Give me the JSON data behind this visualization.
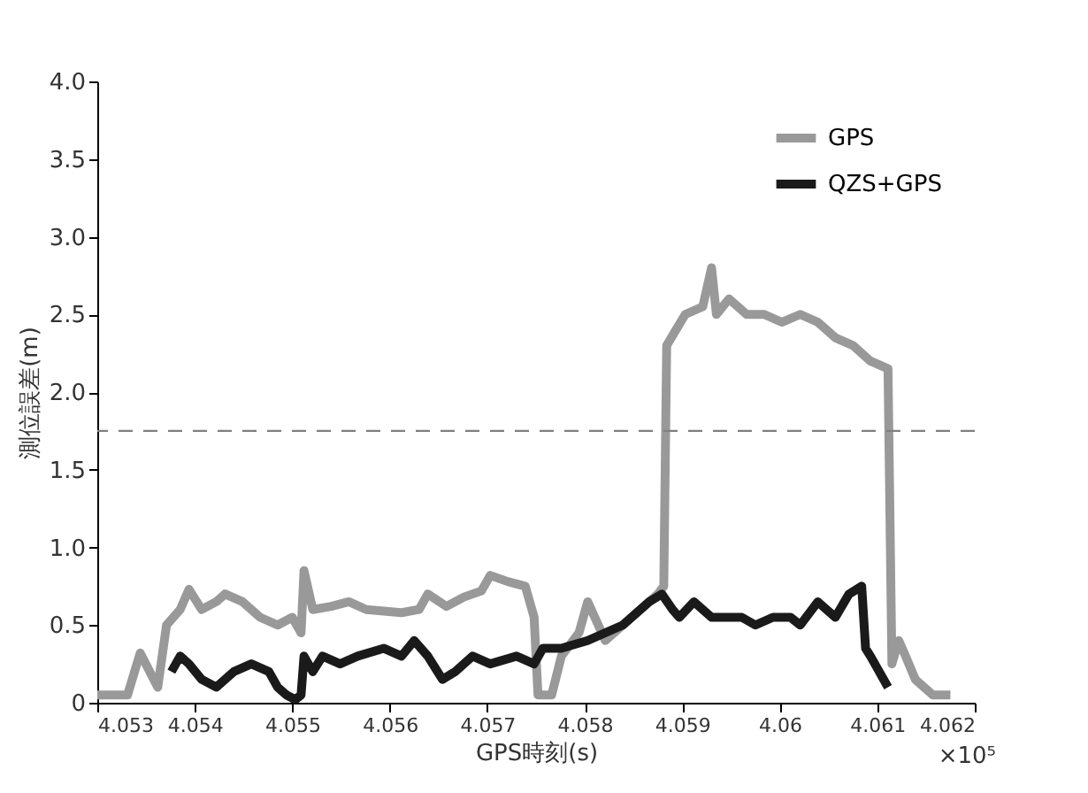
{
  "chart_data": {
    "type": "line",
    "xlabel": "GPS時刻(s)",
    "ylabel": "測位誤差(m)",
    "annotations": [
      "×10⁵"
    ],
    "xlim": [
      4.053,
      4.062
    ],
    "xticks": [
      4.053,
      4.054,
      4.055,
      4.056,
      4.057,
      4.058,
      4.059,
      4.06,
      4.061,
      4.062
    ],
    "ylim": [
      0,
      4.0
    ],
    "yticks": [
      0,
      0.5,
      {
        "value": 1,
        "label": "1.0"
      },
      1.5,
      {
        "value": 2,
        "label": "2.0"
      },
      2.5,
      {
        "value": 3,
        "label": "3.0"
      },
      3.5,
      {
        "value": 4,
        "label": "4.0"
      }
    ],
    "grid": false,
    "legend": "top right",
    "line_style": "solid",
    "marker": "none",
    "ref_lines": [
      {
        "axis": "y",
        "value": 1.75,
        "label": null,
        "color": "#808080",
        "line_style": "dashed"
      }
    ],
    "series": [
      {
        "name": "GPS",
        "color": "#999999",
        "x": [
          4.053,
          4.05331,
          4.05344,
          4.05362,
          4.05371,
          4.05385,
          4.05394,
          4.05407,
          4.05422,
          4.05431,
          4.05449,
          4.05467,
          4.05485,
          4.055,
          4.05509,
          4.05512,
          4.05521,
          4.0554,
          4.05558,
          4.05576,
          4.05612,
          4.0563,
          4.05639,
          4.05658,
          4.05676,
          4.05694,
          4.05703,
          4.05721,
          4.05739,
          4.05748,
          4.05752,
          4.05766,
          4.05776,
          4.05794,
          4.05803,
          4.05821,
          4.05839,
          4.05857,
          4.05875,
          4.05881,
          4.05884,
          4.05903,
          4.05921,
          4.0593,
          4.05935,
          4.05948,
          4.05966,
          4.05984,
          4.06002,
          4.06021,
          4.06039,
          4.06057,
          4.06075,
          4.06093,
          4.06111,
          4.06115,
          4.06122,
          4.06129,
          4.06139,
          4.06157,
          4.06175
        ],
        "values": [
          0.05,
          0.05,
          0.32,
          0.1,
          0.5,
          0.6,
          0.73,
          0.6,
          0.65,
          0.7,
          0.65,
          0.55,
          0.5,
          0.55,
          0.45,
          0.85,
          0.6,
          0.62,
          0.65,
          0.6,
          0.58,
          0.6,
          0.7,
          0.62,
          0.68,
          0.72,
          0.82,
          0.78,
          0.75,
          0.55,
          0.05,
          0.05,
          0.3,
          0.45,
          0.65,
          0.4,
          0.5,
          0.6,
          0.7,
          0.75,
          2.3,
          2.5,
          2.55,
          2.8,
          2.5,
          2.6,
          2.5,
          2.5,
          2.45,
          2.5,
          2.45,
          2.35,
          2.3,
          2.2,
          2.15,
          0.25,
          0.4,
          0.3,
          0.15,
          0.05,
          0.05
        ]
      },
      {
        "name": "QZS+GPS",
        "color": "#1a1a1a",
        "x": [
          4.05376,
          4.05385,
          4.05394,
          4.05407,
          4.05422,
          4.0544,
          4.05458,
          4.05476,
          4.05485,
          4.05494,
          4.05503,
          4.05509,
          4.05512,
          4.05521,
          4.05531,
          4.05549,
          4.05567,
          4.05594,
          4.05612,
          4.05625,
          4.05639,
          4.05654,
          4.05667,
          4.05685,
          4.05703,
          4.0573,
          4.05748,
          4.05757,
          4.05776,
          4.05803,
          4.05821,
          4.05839,
          4.05866,
          4.05879,
          4.0589,
          4.05897,
          4.05912,
          4.0593,
          4.05948,
          4.05961,
          4.05975,
          4.05993,
          4.06011,
          4.06021,
          4.06039,
          4.06057,
          4.06071,
          4.06084,
          4.06088,
          4.06093,
          4.06102,
          4.06111
        ],
        "values": [
          0.2,
          0.3,
          0.25,
          0.15,
          0.1,
          0.2,
          0.25,
          0.2,
          0.1,
          0.05,
          0.02,
          0.05,
          0.3,
          0.2,
          0.3,
          0.25,
          0.3,
          0.35,
          0.3,
          0.4,
          0.3,
          0.15,
          0.2,
          0.3,
          0.25,
          0.3,
          0.25,
          0.35,
          0.35,
          0.4,
          0.45,
          0.5,
          0.65,
          0.7,
          0.6,
          0.55,
          0.65,
          0.55,
          0.55,
          0.55,
          0.5,
          0.55,
          0.55,
          0.5,
          0.65,
          0.55,
          0.7,
          0.75,
          0.35,
          0.3,
          0.2,
          0.1
        ]
      }
    ]
  }
}
